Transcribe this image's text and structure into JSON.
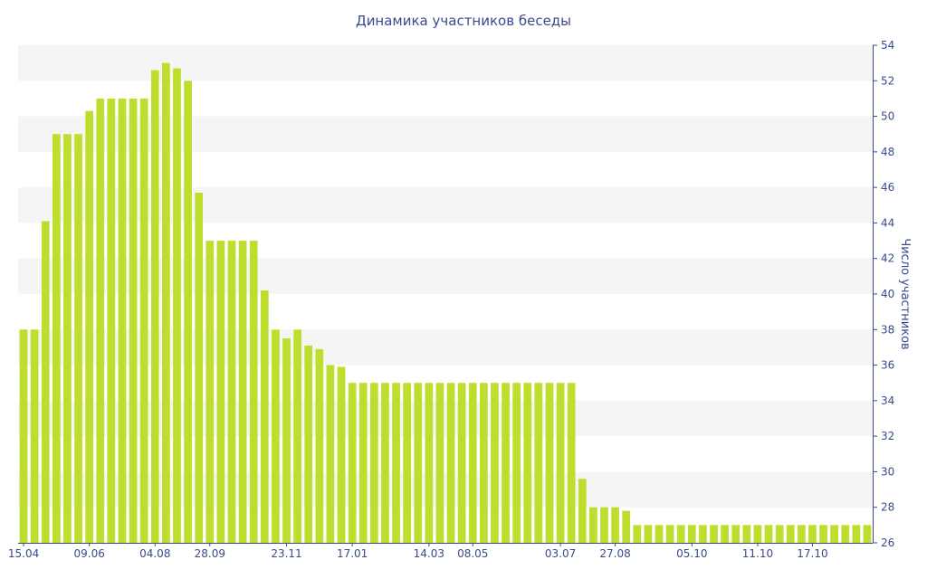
{
  "chart_data": {
    "type": "bar",
    "title": "Динамика участников беседы",
    "xlabel": "",
    "ylabel": "Число участников",
    "y_axis_position": "right",
    "ylim": [
      26,
      54
    ],
    "yticks": [
      26,
      28,
      30,
      32,
      34,
      36,
      38,
      40,
      42,
      44,
      46,
      48,
      50,
      52,
      54
    ],
    "xtick_labels": [
      "15.04",
      "09.06",
      "04.08",
      "28.09",
      "23.11",
      "17.01",
      "14.03",
      "08.05",
      "03.07",
      "27.08",
      "05.10",
      "11.10",
      "17.10"
    ],
    "xtick_bar_index": [
      0,
      6,
      12,
      17,
      24,
      30,
      37,
      41,
      49,
      54,
      61,
      67,
      72
    ],
    "grid": "alternating horizontal bands",
    "legend": "none",
    "values": [
      38,
      38,
      44.1,
      49,
      49,
      49,
      50.3,
      51,
      51,
      51,
      51,
      51,
      52.6,
      53,
      52.7,
      52,
      45.7,
      43,
      43,
      43,
      43,
      43,
      40.2,
      38,
      37.5,
      38,
      37.1,
      36.9,
      36,
      35.9,
      35,
      35,
      35,
      35,
      35,
      35,
      35,
      35,
      35,
      35,
      35,
      35,
      35,
      35,
      35,
      35,
      35,
      35,
      35,
      35,
      35,
      29.6,
      28,
      28,
      28,
      27.8,
      27,
      27,
      27,
      27,
      27,
      27,
      27,
      27,
      27,
      27,
      27,
      27,
      27,
      27,
      27,
      27,
      27,
      27,
      27,
      27,
      27,
      27
    ],
    "colors": {
      "bar": "#bede2d",
      "band": "#f5f5f5",
      "axis_text": "#3a4a8c",
      "axis_line": "#3a4a8c"
    }
  }
}
